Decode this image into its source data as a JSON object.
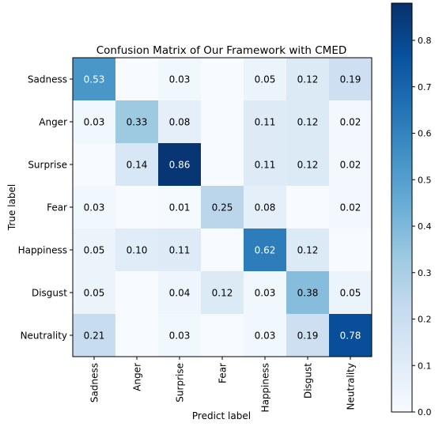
{
  "chart_data": {
    "type": "heatmap",
    "title": "Confusion Matrix of Our Framework with CMED",
    "xlabel": "Predict label",
    "ylabel": "True label",
    "row_labels": [
      "Sadness",
      "Anger",
      "Surprise",
      "Fear",
      "Happiness",
      "Disgust",
      "Neutrality"
    ],
    "col_labels": [
      "Sadness",
      "Anger",
      "Surprise",
      "Fear",
      "Happiness",
      "Disgust",
      "Neutrality"
    ],
    "values": [
      [
        0.53,
        null,
        0.03,
        null,
        0.05,
        0.12,
        0.19
      ],
      [
        0.03,
        0.33,
        0.08,
        null,
        0.11,
        0.12,
        0.02
      ],
      [
        null,
        0.14,
        0.86,
        null,
        0.11,
        0.12,
        0.02
      ],
      [
        0.03,
        null,
        0.01,
        0.25,
        0.08,
        null,
        0.02
      ],
      [
        0.05,
        0.1,
        0.11,
        null,
        0.62,
        0.12,
        null
      ],
      [
        0.05,
        null,
        0.04,
        0.12,
        0.03,
        0.38,
        0.05
      ],
      [
        0.21,
        null,
        0.03,
        null,
        0.03,
        0.19,
        0.78
      ]
    ],
    "colorbar": {
      "min": 0.0,
      "max": 0.88,
      "ticks": [
        0.0,
        0.1,
        0.2,
        0.3,
        0.4,
        0.5,
        0.6,
        0.7,
        0.8
      ],
      "tick_labels": [
        "0.0",
        "0.1",
        "0.2",
        "0.3",
        "0.4",
        "0.5",
        "0.6",
        "0.7",
        "0.8"
      ],
      "colormap": "Blues",
      "colors": [
        "#f7fbff",
        "#deebf7",
        "#c6dbef",
        "#9ecae1",
        "#6baed6",
        "#4292c6",
        "#2171b5",
        "#08519c",
        "#08306b"
      ]
    },
    "grid": false
  }
}
